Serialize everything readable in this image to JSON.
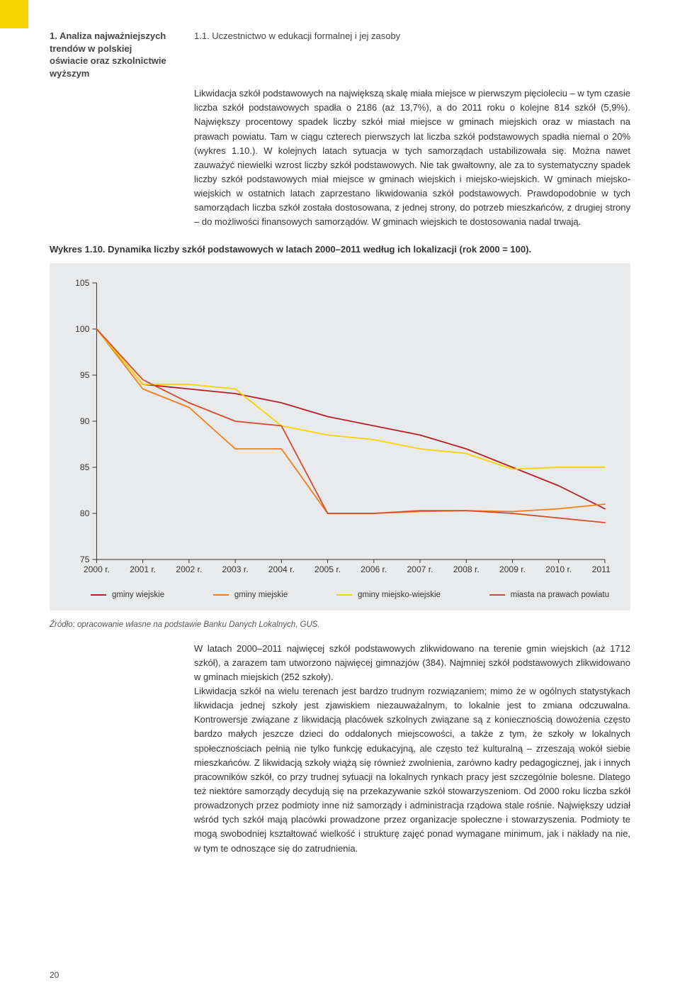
{
  "header": {
    "trend_title_l1": "1. Analiza najważniejszych",
    "trend_title_l2": "trendów w polskiej",
    "trend_title_l3": "oświacie oraz szkolnictwie",
    "trend_title_l4": "wyższym",
    "section_code_label": "1.1.   Uczestnictwo w edukacji formalnej i jej zasoby"
  },
  "paragraphs": {
    "p1": "Likwidacja szkół podstawowych na największą skalę miała miejsce w pierwszym pięcioleciu – w tym czasie liczba szkół podstawowych spadła o 2186 (aż 13,7%), a do 2011 roku o kolejne 814 szkół (5,9%). Największy procentowy spadek liczby szkół miał miejsce w gminach miejskich oraz w miastach na prawach powiatu. Tam w ciągu czterech pierwszych lat liczba szkół podstawowych spadła niemal o 20% (wykres 1.10.). W kolejnych latach sytuacja w tych samorządach ustabilizowała się. Można nawet zauważyć niewielki wzrost liczby szkół podstawowych. Nie tak gwałtowny, ale za to systematyczny spadek liczby szkół podstawowych miał miejsce w gminach wiejskich i miejsko-wiejskich. W gminach miejsko-wiejskich w ostatnich latach zaprzestano likwidowania szkół podstawowych. Prawdopodobnie w tych samorządach liczba szkół została dostosowana, z jednej strony, do potrzeb mieszkańców, z drugiej strony – do możliwości finansowych samorządów. W gminach wiejskich te dostosowania nadal trwają.",
    "p2": "W latach 2000–2011 najwięcej szkół podstawowych zlikwidowano na terenie gmin wiejskich (aż 1712 szkół), a zarazem tam utworzono najwięcej gimnazjów (384). Najmniej szkół podstawowych zlikwidowano w gminach miejskich (252 szkoły).\nLikwidacja szkół na wielu terenach jest bardzo trudnym rozwiązaniem; mimo że w ogólnych statystykach likwidacja jednej szkoły jest zjawiskiem niezauważalnym, to lokalnie jest to zmiana odczuwalna. Kontrowersje związane z likwidacją placówek szkolnych związane są z koniecznością dowożenia często bardzo małych jeszcze dzieci do oddalonych miejscowości, a także z tym, że szkoły w lokalnych społecznościach pełnią nie tylko funkcję edukacyjną, ale często też kulturalną – zrzeszają wokół siebie mieszkańców. Z likwidacją szkoły wiążą się również zwolnienia, zarówno kadry pedagogicznej, jak i innych pracowników szkół, co przy trudnej sytuacji na lokalnych rynkach pracy jest szczególnie bolesne. Dlatego też niektóre samorządy decydują się na przekazywanie szkół stowarzyszeniom. Od 2000 roku liczba szkół prowadzonych przez podmioty inne niż samorządy i administracja rządowa stale rośnie. Największy udział wśród tych szkół mają placówki prowadzone przez organizacje społeczne i stowarzyszenia. Podmioty te mogą swobodniej kształtować wielkość i strukturę zajęć ponad wymagane minimum, jak i nakłady na nie, w tym te odnoszące się do zatrudnienia."
  },
  "chart": {
    "title": "Wykres 1.10. Dynamika liczby szkół podstawowych w latach 2000–2011 według ich lokalizacji (rok 2000 = 100).",
    "type": "line",
    "background_color": "#e9eaeb",
    "grid_color": "#333333",
    "x_labels": [
      "2000 r.",
      "2001 r.",
      "2002 r.",
      "2003 r.",
      "2004 r.",
      "2005 r.",
      "2006 r.",
      "2007 r.",
      "2008 r.",
      "2009 r.",
      "2010 r.",
      "2011 r."
    ],
    "ylim": [
      75,
      105
    ],
    "ytick_step": 5,
    "line_width": 1.8,
    "axis_fontsize": 12,
    "series": [
      {
        "name": "gminy wiejskie",
        "color": "#b51f28",
        "values": [
          100,
          94.0,
          93.5,
          93.0,
          92.0,
          90.5,
          89.5,
          88.5,
          87.0,
          85.0,
          83.0,
          80.5
        ]
      },
      {
        "name": "gminy miejskie",
        "color": "#ef7f1a",
        "values": [
          100,
          93.5,
          91.5,
          87.0,
          87.0,
          80.0,
          80.0,
          80.2,
          80.3,
          80.2,
          80.5,
          81.0
        ]
      },
      {
        "name": "gminy miejsko-wiejskie",
        "color": "#f6d400",
        "values": [
          100,
          94.0,
          94.0,
          93.5,
          89.5,
          88.5,
          88.0,
          87.0,
          86.5,
          84.8,
          85.0,
          85.0
        ]
      },
      {
        "name": "miasta na prawach powiatu",
        "color": "#d84a2a",
        "values": [
          100,
          94.5,
          92.0,
          90.0,
          89.5,
          80.0,
          80.0,
          80.3,
          80.3,
          80.0,
          79.5,
          79.0
        ]
      }
    ],
    "source": "Źródło: opracowanie własne na podstawie Banku Danych Lokalnych, GUS."
  },
  "page_number": "20"
}
